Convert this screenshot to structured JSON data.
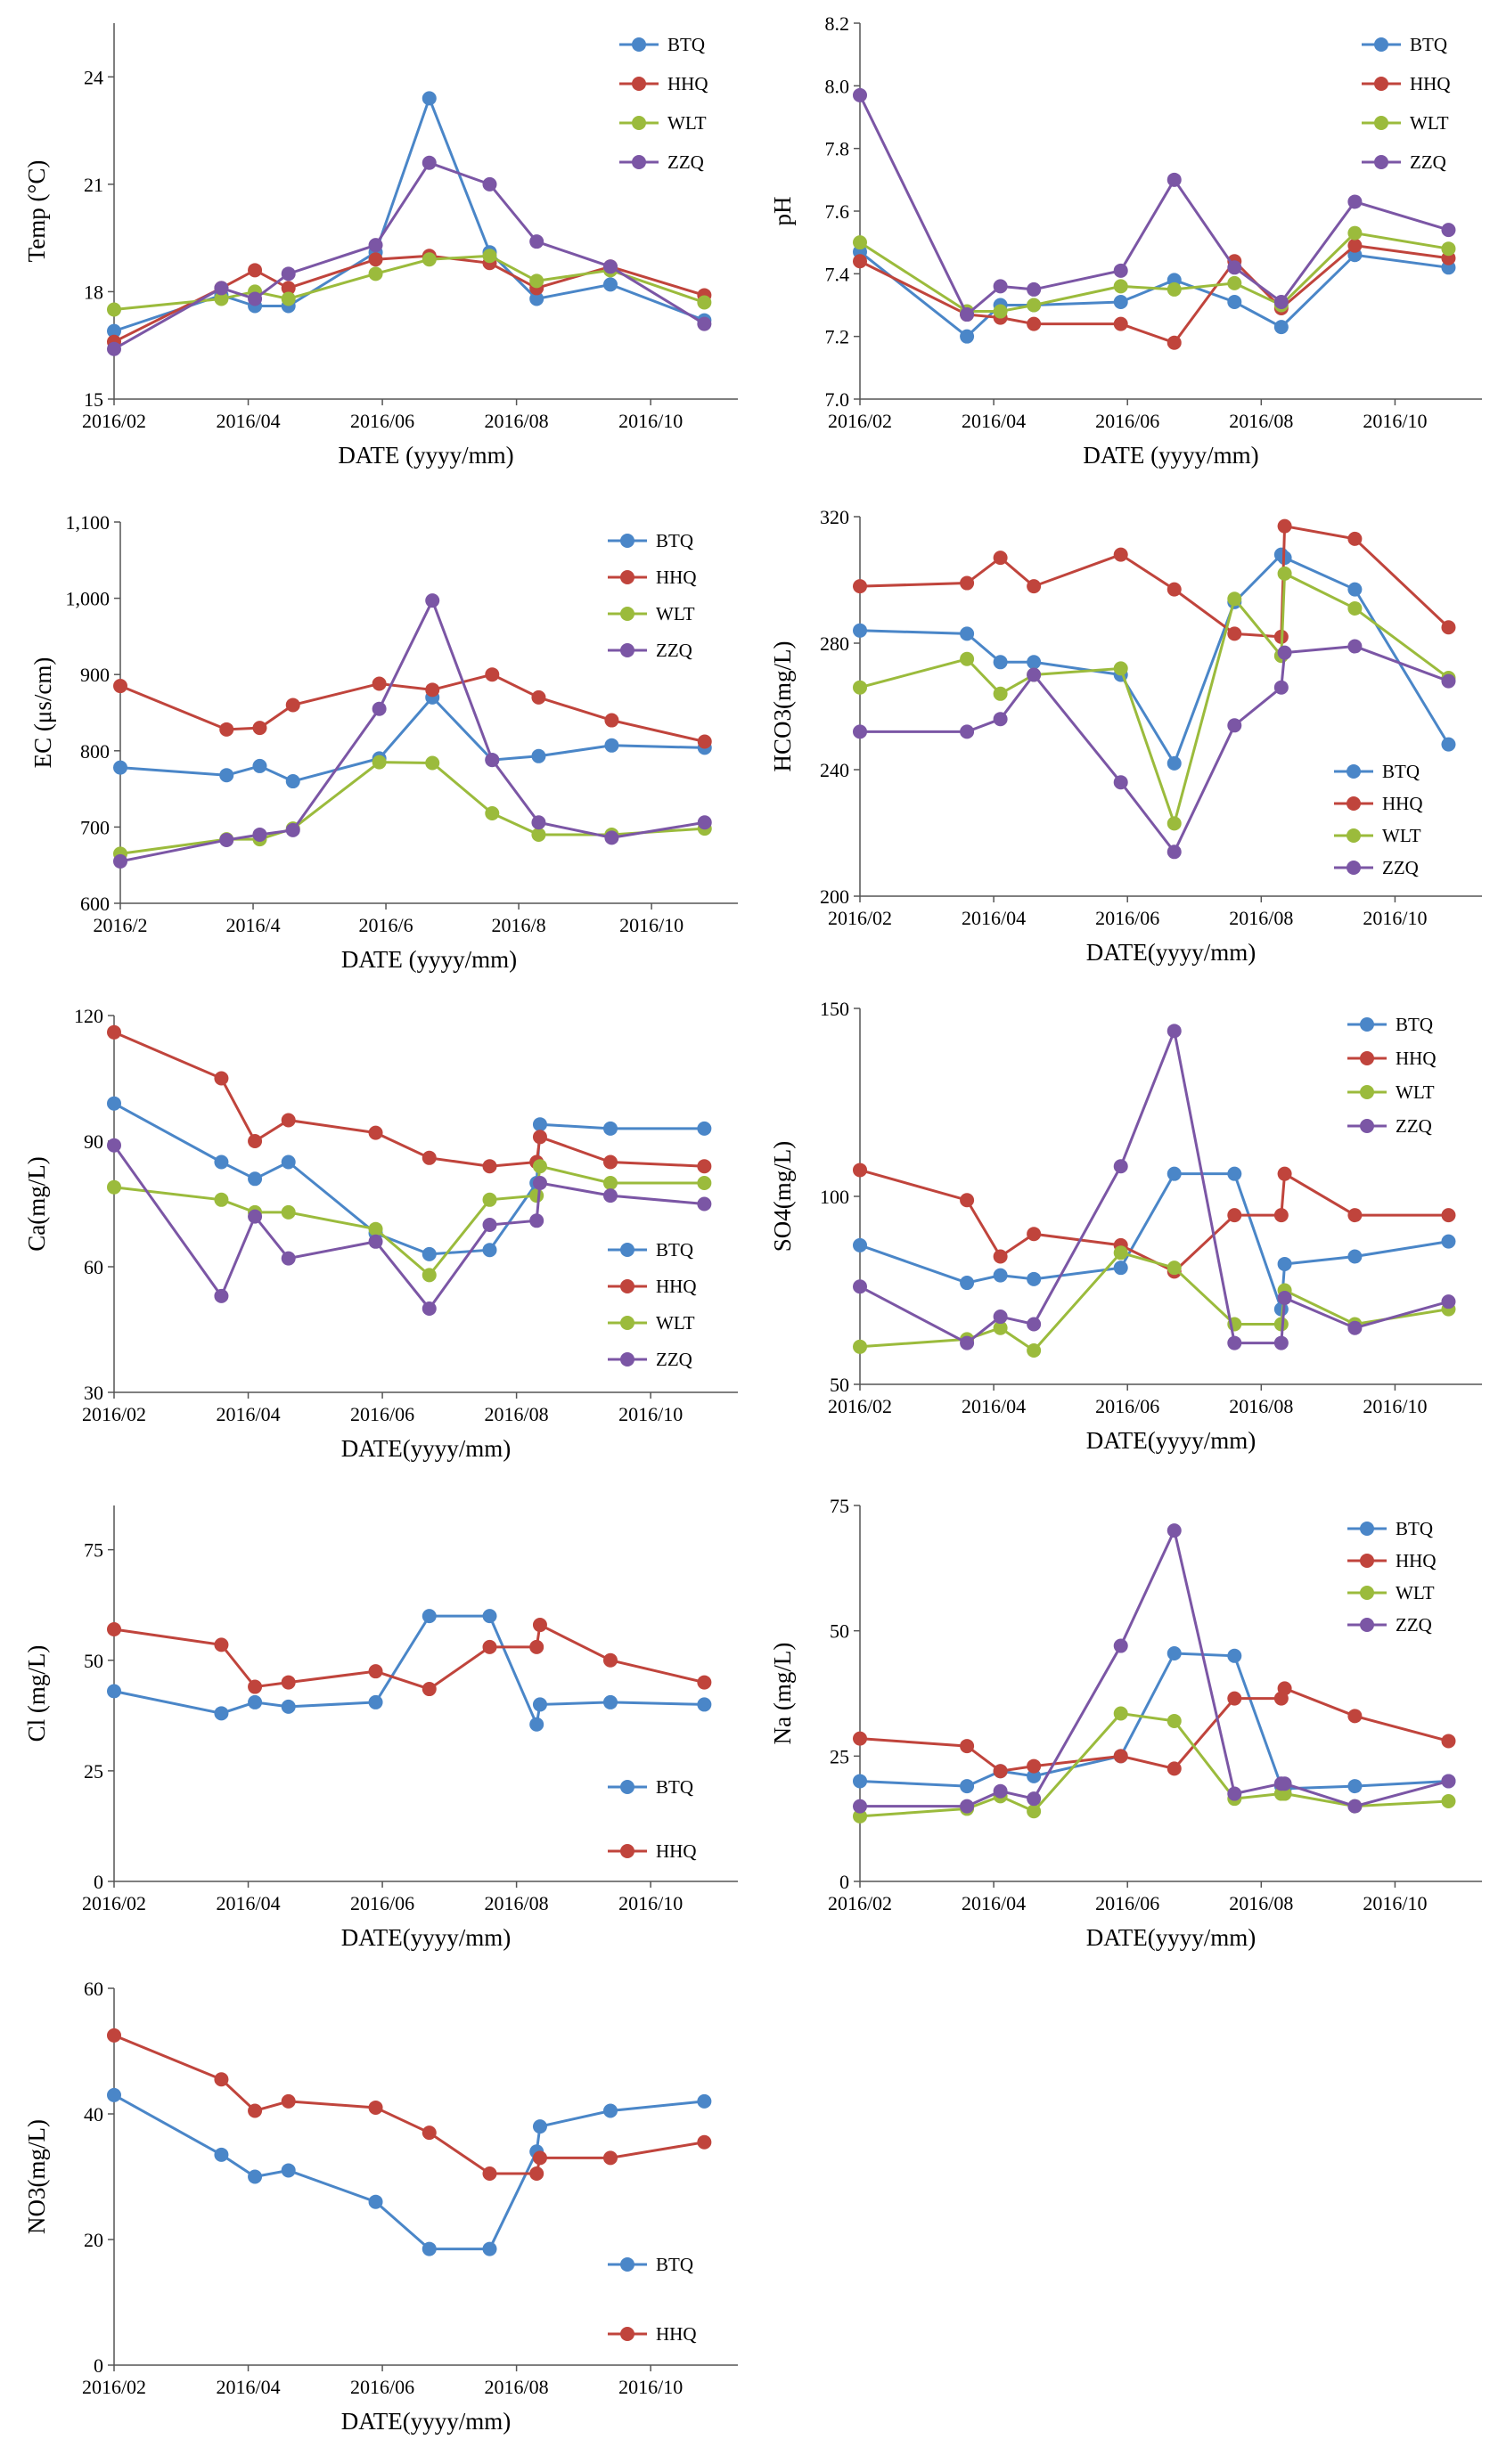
{
  "colors": {
    "BTQ": "#4a86c8",
    "HHQ": "#c0443c",
    "WLT": "#9bbb3c",
    "ZZQ": "#7b56a5"
  },
  "chart_data": [
    {
      "type": "line",
      "id": "temp",
      "ylabel": "Temp (°C)",
      "xlabel": "DATE (yyyy/mm)",
      "ylim": [
        15,
        25.5
      ],
      "yticks": [
        15,
        18,
        21,
        24
      ],
      "ytick_labels": [
        "15",
        "18",
        "21",
        "24"
      ],
      "xticks": [
        0,
        2,
        4,
        6,
        8
      ],
      "xtick_labels": [
        "2016/02",
        "2016/04",
        "2016/06",
        "2016/08",
        "2016/10"
      ],
      "x": [
        0,
        1.6,
        2.1,
        2.6,
        3.9,
        4.7,
        5.6,
        6.3,
        7.4,
        8.8
      ],
      "series": [
        {
          "name": "BTQ",
          "values": [
            16.9,
            17.9,
            17.6,
            17.6,
            19.1,
            23.4,
            19.1,
            17.8,
            18.2,
            17.2
          ]
        },
        {
          "name": "HHQ",
          "values": [
            16.6,
            18.1,
            18.6,
            18.1,
            18.9,
            19.0,
            18.8,
            18.1,
            18.7,
            17.9
          ]
        },
        {
          "name": "WLT",
          "values": [
            17.5,
            17.8,
            18.0,
            17.8,
            18.5,
            18.9,
            19.0,
            18.3,
            18.6,
            17.7
          ]
        },
        {
          "name": "ZZQ",
          "values": [
            16.4,
            18.1,
            17.8,
            18.5,
            19.3,
            21.6,
            21.0,
            19.4,
            18.7,
            17.1
          ]
        }
      ],
      "legend": [
        "BTQ",
        "HHQ",
        "WLT",
        "ZZQ"
      ],
      "legend_position": "top-right"
    },
    {
      "type": "line",
      "id": "ph",
      "ylabel": "pH",
      "xlabel": "DATE (yyyy/mm)",
      "ylim": [
        7.0,
        8.2
      ],
      "yticks": [
        7.0,
        7.2,
        7.4,
        7.6,
        7.8,
        8.0,
        8.2
      ],
      "ytick_labels": [
        "7.0",
        "7.2",
        "7.4",
        "7.6",
        "7.8",
        "8.0",
        "8.2"
      ],
      "xticks": [
        0,
        2,
        4,
        6,
        8
      ],
      "xtick_labels": [
        "2016/02",
        "2016/04",
        "2016/06",
        "2016/08",
        "2016/10"
      ],
      "x": [
        0,
        1.6,
        2.1,
        2.6,
        3.9,
        4.7,
        5.6,
        6.3,
        7.4,
        8.8
      ],
      "series": [
        {
          "name": "BTQ",
          "values": [
            7.47,
            7.2,
            7.3,
            7.3,
            7.31,
            7.38,
            7.31,
            7.23,
            7.46,
            7.42
          ]
        },
        {
          "name": "HHQ",
          "values": [
            7.44,
            7.27,
            7.26,
            7.24,
            7.24,
            7.18,
            7.44,
            7.29,
            7.49,
            7.45
          ]
        },
        {
          "name": "WLT",
          "values": [
            7.5,
            7.28,
            7.28,
            7.3,
            7.36,
            7.35,
            7.37,
            7.3,
            7.53,
            7.48
          ]
        },
        {
          "name": "ZZQ",
          "values": [
            7.97,
            7.27,
            7.36,
            7.35,
            7.41,
            7.7,
            7.42,
            7.31,
            7.63,
            7.54
          ]
        }
      ],
      "legend": [
        "BTQ",
        "HHQ",
        "WLT",
        "ZZQ"
      ],
      "legend_position": "top-right"
    },
    {
      "type": "line",
      "id": "ec",
      "ylabel": "EC (μs/cm)",
      "xlabel": "DATE (yyyy/mm)",
      "ylim": [
        600,
        1100
      ],
      "yticks": [
        600,
        700,
        800,
        900,
        1000,
        1100
      ],
      "ytick_labels": [
        "600",
        "700",
        "800",
        "900",
        "1,000",
        "1,100"
      ],
      "xticks": [
        0,
        2,
        4,
        6,
        8
      ],
      "xtick_labels": [
        "2016/2",
        "2016/4",
        "2016/6",
        "2016/8",
        "2016/10"
      ],
      "x": [
        0,
        1.6,
        2.1,
        2.6,
        3.9,
        4.7,
        5.6,
        6.3,
        7.4,
        8.8
      ],
      "series": [
        {
          "name": "BTQ",
          "values": [
            778,
            768,
            780,
            760,
            790,
            870,
            788,
            793,
            807,
            804
          ]
        },
        {
          "name": "HHQ",
          "values": [
            885,
            828,
            830,
            860,
            888,
            880,
            900,
            870,
            840,
            812
          ]
        },
        {
          "name": "WLT",
          "values": [
            665,
            684,
            684,
            698,
            785,
            784,
            718,
            690,
            690,
            698
          ]
        },
        {
          "name": "ZZQ",
          "values": [
            655,
            683,
            690,
            696,
            855,
            997,
            788,
            706,
            686,
            706
          ]
        }
      ],
      "legend": [
        "BTQ",
        "HHQ",
        "WLT",
        "ZZQ"
      ],
      "legend_position": "top-right"
    },
    {
      "type": "line",
      "id": "hco3",
      "ylabel": "HCO3(mg/L)",
      "xlabel": "DATE(yyyy/mm)",
      "ylim": [
        200,
        320
      ],
      "yticks": [
        200,
        240,
        280,
        320
      ],
      "ytick_labels": [
        "200",
        "240",
        "280",
        "320"
      ],
      "xticks": [
        0,
        2,
        4,
        6,
        8
      ],
      "xtick_labels": [
        "2016/02",
        "2016/04",
        "2016/06",
        "2016/08",
        "2016/10"
      ],
      "x": [
        0,
        1.6,
        2.1,
        2.6,
        3.9,
        4.7,
        5.6,
        6.3,
        6.35,
        7.4,
        8.8
      ],
      "series": [
        {
          "name": "BTQ",
          "values": [
            284,
            283,
            274,
            274,
            270,
            242,
            293,
            308,
            307,
            297,
            248
          ]
        },
        {
          "name": "HHQ",
          "values": [
            298,
            299,
            307,
            298,
            308,
            297,
            283,
            282,
            317,
            313,
            285
          ]
        },
        {
          "name": "WLT",
          "values": [
            266,
            275,
            264,
            270,
            272,
            223,
            294,
            276,
            302,
            291,
            269
          ]
        },
        {
          "name": "ZZQ",
          "values": [
            252,
            252,
            256,
            270,
            236,
            214,
            254,
            266,
            277,
            279,
            268
          ]
        }
      ],
      "legend": [
        "BTQ",
        "HHQ",
        "WLT",
        "ZZQ"
      ],
      "legend_position": "bottom-right"
    },
    {
      "type": "line",
      "id": "ca",
      "ylabel": "Ca(mg/L)",
      "xlabel": "DATE(yyyy/mm)",
      "ylim": [
        30,
        120
      ],
      "yticks": [
        30,
        60,
        90,
        120
      ],
      "ytick_labels": [
        "30",
        "60",
        "90",
        "120"
      ],
      "xticks": [
        0,
        2,
        4,
        6,
        8
      ],
      "xtick_labels": [
        "2016/02",
        "2016/04",
        "2016/06",
        "2016/08",
        "2016/10"
      ],
      "x": [
        0,
        1.6,
        2.1,
        2.6,
        3.9,
        4.7,
        5.6,
        6.3,
        6.35,
        7.4,
        8.8
      ],
      "series": [
        {
          "name": "BTQ",
          "values": [
            99,
            85,
            81,
            85,
            68,
            63,
            64,
            80,
            94,
            93,
            93
          ]
        },
        {
          "name": "HHQ",
          "values": [
            116,
            105,
            90,
            95,
            92,
            86,
            84,
            85,
            91,
            85,
            84
          ]
        },
        {
          "name": "WLT",
          "values": [
            79,
            76,
            73,
            73,
            69,
            58,
            76,
            77,
            84,
            80,
            80
          ]
        },
        {
          "name": "ZZQ",
          "values": [
            89,
            53,
            72,
            62,
            66,
            50,
            70,
            71,
            80,
            77,
            75
          ]
        }
      ],
      "legend": [
        "BTQ",
        "HHQ",
        "WLT",
        "ZZQ"
      ],
      "legend_position": "bottom-right"
    },
    {
      "type": "line",
      "id": "so4",
      "ylabel": "SO4(mg/L)",
      "xlabel": "DATE(yyyy/mm)",
      "ylim": [
        50,
        150
      ],
      "yticks": [
        50,
        100,
        150
      ],
      "ytick_labels": [
        "50",
        "100",
        "150"
      ],
      "xticks": [
        0,
        2,
        4,
        6,
        8
      ],
      "xtick_labels": [
        "2016/02",
        "2016/04",
        "2016/06",
        "2016/08",
        "2016/10"
      ],
      "x": [
        0,
        1.6,
        2.1,
        2.6,
        3.9,
        4.7,
        5.6,
        6.3,
        6.35,
        7.4,
        8.8
      ],
      "series": [
        {
          "name": "BTQ",
          "values": [
            87,
            77,
            79,
            78,
            81,
            106,
            106,
            70,
            82,
            84,
            88
          ]
        },
        {
          "name": "HHQ",
          "values": [
            107,
            99,
            84,
            90,
            87,
            80,
            95,
            95,
            106,
            95,
            95
          ]
        },
        {
          "name": "WLT",
          "values": [
            60,
            62,
            65,
            59,
            85,
            81,
            66,
            66,
            75,
            66,
            70
          ]
        },
        {
          "name": "ZZQ",
          "values": [
            76,
            61,
            68,
            66,
            108,
            144,
            61,
            61,
            73,
            65,
            72
          ]
        }
      ],
      "legend": [
        "BTQ",
        "HHQ",
        "WLT",
        "ZZQ"
      ],
      "legend_position": "top-right"
    },
    {
      "type": "line",
      "id": "cl",
      "ylabel": "Cl (mg/L)",
      "xlabel": "DATE(yyyy/mm)",
      "ylim": [
        0,
        85
      ],
      "yticks": [
        0,
        25,
        50,
        75
      ],
      "ytick_labels": [
        "0",
        "25",
        "50",
        "75"
      ],
      "xticks": [
        0,
        2,
        4,
        6,
        8
      ],
      "xtick_labels": [
        "2016/02",
        "2016/04",
        "2016/06",
        "2016/08",
        "2016/10"
      ],
      "x": [
        0,
        1.6,
        2.1,
        2.6,
        3.9,
        4.7,
        5.6,
        6.3,
        6.35,
        7.4,
        8.8
      ],
      "series": [
        {
          "name": "BTQ",
          "values": [
            43,
            38,
            40.5,
            39.5,
            40.5,
            60,
            60,
            35.5,
            40,
            40.5,
            40
          ]
        },
        {
          "name": "HHQ",
          "values": [
            57,
            53.5,
            44,
            45,
            47.5,
            43.5,
            53,
            53,
            58,
            50,
            45
          ]
        }
      ],
      "legend": [
        "BTQ",
        "HHQ"
      ],
      "legend_position": "bottom-right"
    },
    {
      "type": "line",
      "id": "na",
      "ylabel": "Na (mg/L)",
      "xlabel": "DATE(yyyy/mm)",
      "ylim": [
        0,
        75
      ],
      "yticks": [
        0,
        25,
        50,
        75
      ],
      "ytick_labels": [
        "0",
        "25",
        "50",
        "75"
      ],
      "xticks": [
        0,
        2,
        4,
        6,
        8
      ],
      "xtick_labels": [
        "2016/02",
        "2016/04",
        "2016/06",
        "2016/08",
        "2016/10"
      ],
      "x": [
        0,
        1.6,
        2.1,
        2.6,
        3.9,
        4.7,
        5.6,
        6.3,
        6.35,
        7.4,
        8.8
      ],
      "series": [
        {
          "name": "BTQ",
          "values": [
            20,
            19,
            22,
            21,
            25,
            45.5,
            45,
            19,
            18.5,
            19,
            20
          ]
        },
        {
          "name": "HHQ",
          "values": [
            28.5,
            27,
            22,
            23,
            25,
            22.5,
            36.5,
            36.5,
            38.5,
            33,
            28
          ]
        },
        {
          "name": "WLT",
          "values": [
            13,
            14.5,
            17,
            14,
            33.5,
            32,
            16.5,
            17.5,
            17.5,
            15,
            16
          ]
        },
        {
          "name": "ZZQ",
          "values": [
            15,
            15,
            18,
            16.5,
            47,
            70,
            17.5,
            19.5,
            19.5,
            15,
            20
          ]
        }
      ],
      "legend": [
        "BTQ",
        "HHQ",
        "WLT",
        "ZZQ"
      ],
      "legend_position": "top-right"
    },
    {
      "type": "line",
      "id": "no3",
      "ylabel": "NO3(mg/L)",
      "xlabel": "DATE(yyyy/mm)",
      "ylim": [
        0,
        60
      ],
      "yticks": [
        0,
        20,
        40,
        60
      ],
      "ytick_labels": [
        "0",
        "20",
        "40",
        "60"
      ],
      "xticks": [
        0,
        2,
        4,
        6,
        8
      ],
      "xtick_labels": [
        "2016/02",
        "2016/04",
        "2016/06",
        "2016/08",
        "2016/10"
      ],
      "x": [
        0,
        1.6,
        2.1,
        2.6,
        3.9,
        4.7,
        5.6,
        6.3,
        6.35,
        7.4,
        8.8
      ],
      "series": [
        {
          "name": "BTQ",
          "values": [
            43,
            33.5,
            30,
            31,
            26,
            18.5,
            18.5,
            34,
            38,
            40.5,
            42
          ]
        },
        {
          "name": "HHQ",
          "values": [
            52.5,
            45.5,
            40.5,
            42,
            41,
            37,
            30.5,
            30.5,
            33,
            33,
            35.5
          ]
        }
      ],
      "legend": [
        "BTQ",
        "HHQ"
      ],
      "legend_position": "bottom-right"
    }
  ]
}
